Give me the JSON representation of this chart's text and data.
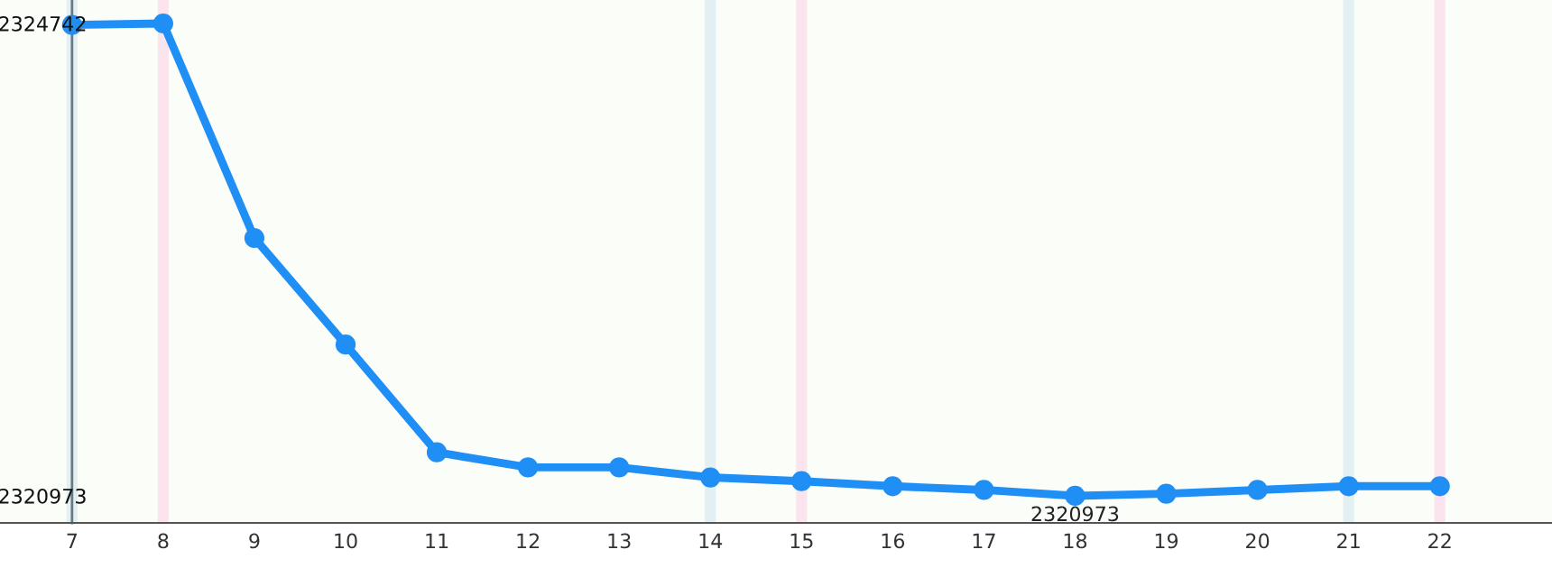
{
  "chart_data": {
    "type": "line",
    "x": [
      7,
      8,
      9,
      10,
      11,
      12,
      13,
      14,
      15,
      16,
      17,
      18,
      19,
      20,
      21,
      22
    ],
    "series": [
      {
        "color": "#1f8ff5",
        "values": [
          2324730,
          2324742,
          2323030,
          2322180,
          2321320,
          2321200,
          2321200,
          2321120,
          2321090,
          2321050,
          2321020,
          2320973,
          2320990,
          2321020,
          2321050,
          2321050
        ],
        "value_labels": [
          null,
          null,
          null,
          null,
          null,
          null,
          null,
          null,
          null,
          null,
          null,
          "2320973",
          null,
          null,
          null,
          null
        ]
      }
    ],
    "xlim": [
      6.21,
      23.23
    ],
    "xticks": [
      7,
      8,
      9,
      10,
      11,
      12,
      13,
      14,
      15,
      16,
      17,
      18,
      19,
      20,
      21,
      22
    ],
    "ylim": [
      2320757,
      2324929
    ],
    "yticks": [
      2324742,
      2320973
    ],
    "bands": [
      {
        "axis": "x",
        "from": 6.94,
        "to": 7.06,
        "color": "#e2eff3"
      },
      {
        "axis": "x",
        "from": 13.94,
        "to": 14.06,
        "color": "#e2eff3"
      },
      {
        "axis": "x",
        "from": 20.94,
        "to": 21.06,
        "color": "#e2eff3"
      },
      {
        "axis": "x",
        "from": 7.94,
        "to": 8.06,
        "color": "#fbe4ee"
      },
      {
        "axis": "x",
        "from": 14.94,
        "to": 15.06,
        "color": "#fbe4ee"
      },
      {
        "axis": "x",
        "from": 21.94,
        "to": 22.06,
        "color": "#fbe4ee"
      }
    ],
    "grid": false,
    "marker": "circle",
    "line_style": "solid"
  }
}
